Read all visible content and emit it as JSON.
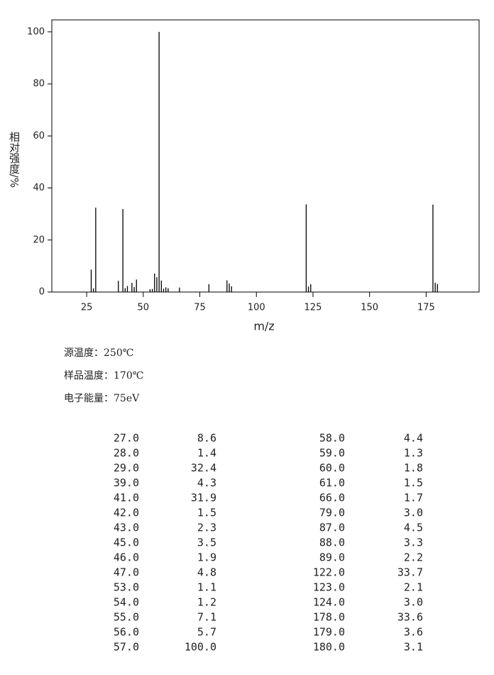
{
  "chart_data": {
    "type": "bar",
    "x_label": "m/z",
    "y_label": "相对强度/%",
    "x": [
      27,
      28,
      29,
      39,
      41,
      42,
      43,
      45,
      46,
      47,
      53,
      54,
      55,
      56,
      57,
      58,
      59,
      60,
      61,
      66,
      79,
      87,
      88,
      89,
      122,
      123,
      124,
      178,
      179,
      180
    ],
    "values": [
      8.6,
      1.4,
      32.4,
      4.3,
      31.9,
      1.5,
      2.3,
      3.5,
      1.9,
      4.8,
      1.1,
      1.2,
      7.1,
      5.7,
      100.0,
      4.4,
      1.3,
      1.8,
      1.5,
      1.7,
      3.0,
      4.5,
      3.3,
      2.2,
      33.7,
      2.1,
      3.0,
      33.6,
      3.6,
      3.1
    ],
    "color": "#000000",
    "xlim": [
      9.6,
      198.4
    ],
    "xticks": [
      25,
      50,
      75,
      100,
      125,
      150,
      175
    ],
    "ylim": [
      0,
      104.6
    ],
    "yticks": [
      0,
      20,
      40,
      60,
      80,
      100
    ]
  },
  "info": [
    "源温度：250℃",
    "样品温度：170℃",
    "电子能量：75eV"
  ],
  "table": {
    "rows": [
      [
        "27.0",
        "8.6",
        "58.0",
        "4.4"
      ],
      [
        "28.0",
        "1.4",
        "59.0",
        "1.3"
      ],
      [
        "29.0",
        "32.4",
        "60.0",
        "1.8"
      ],
      [
        "39.0",
        "4.3",
        "61.0",
        "1.5"
      ],
      [
        "41.0",
        "31.9",
        "66.0",
        "1.7"
      ],
      [
        "42.0",
        "1.5",
        "79.0",
        "3.0"
      ],
      [
        "43.0",
        "2.3",
        "87.0",
        "4.5"
      ],
      [
        "45.0",
        "3.5",
        "88.0",
        "3.3"
      ],
      [
        "46.0",
        "1.9",
        "89.0",
        "2.2"
      ],
      [
        "47.0",
        "4.8",
        "122.0",
        "33.7"
      ],
      [
        "53.0",
        "1.1",
        "123.0",
        "2.1"
      ],
      [
        "54.0",
        "1.2",
        "124.0",
        "3.0"
      ],
      [
        "55.0",
        "7.1",
        "178.0",
        "33.6"
      ],
      [
        "56.0",
        "5.7",
        "179.0",
        "3.6"
      ],
      [
        "57.0",
        "100.0",
        "180.0",
        "3.1"
      ]
    ]
  }
}
